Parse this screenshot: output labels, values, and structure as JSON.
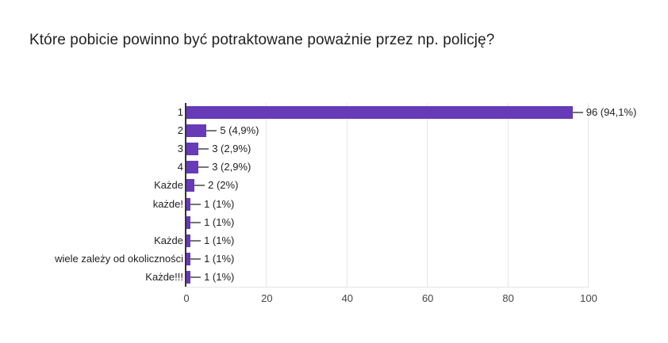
{
  "header": {
    "title": "Które pobicie powinno być potraktowane poważnie przez np. policję?"
  },
  "chart_data": {
    "type": "bar",
    "orientation": "horizontal",
    "title": "Które pobicie powinno być potraktowane poważnie przez np. policję?",
    "categories": [
      "1",
      "2",
      "3",
      "4",
      "Każde",
      "każde!",
      "",
      "Każde",
      "wiele zależy od okoliczności",
      "Każde!!!"
    ],
    "values": [
      96,
      5,
      3,
      3,
      2,
      1,
      1,
      1,
      1,
      1
    ],
    "value_labels": [
      "96 (94,1%)",
      "5 (4,9%)",
      "3 (2,9%)",
      "3 (2,9%)",
      "2 (2%)",
      "1 (1%)",
      "1 (1%)",
      "1 (1%)",
      "1 (1%)",
      "1 (1%)"
    ],
    "x_ticks": [
      0,
      20,
      40,
      60,
      80,
      100
    ],
    "xlim": [
      0,
      100
    ],
    "grid": true,
    "legend": "none",
    "colors": {
      "bar": "#673ab7",
      "gridline": "#e6e6e6",
      "axis_line": "#333333",
      "leader_line": "#757575",
      "value_label": "#212121",
      "category_label": "#212121",
      "tick_label": "#444444",
      "background": "#ffffff",
      "title_text": "#212121"
    }
  }
}
